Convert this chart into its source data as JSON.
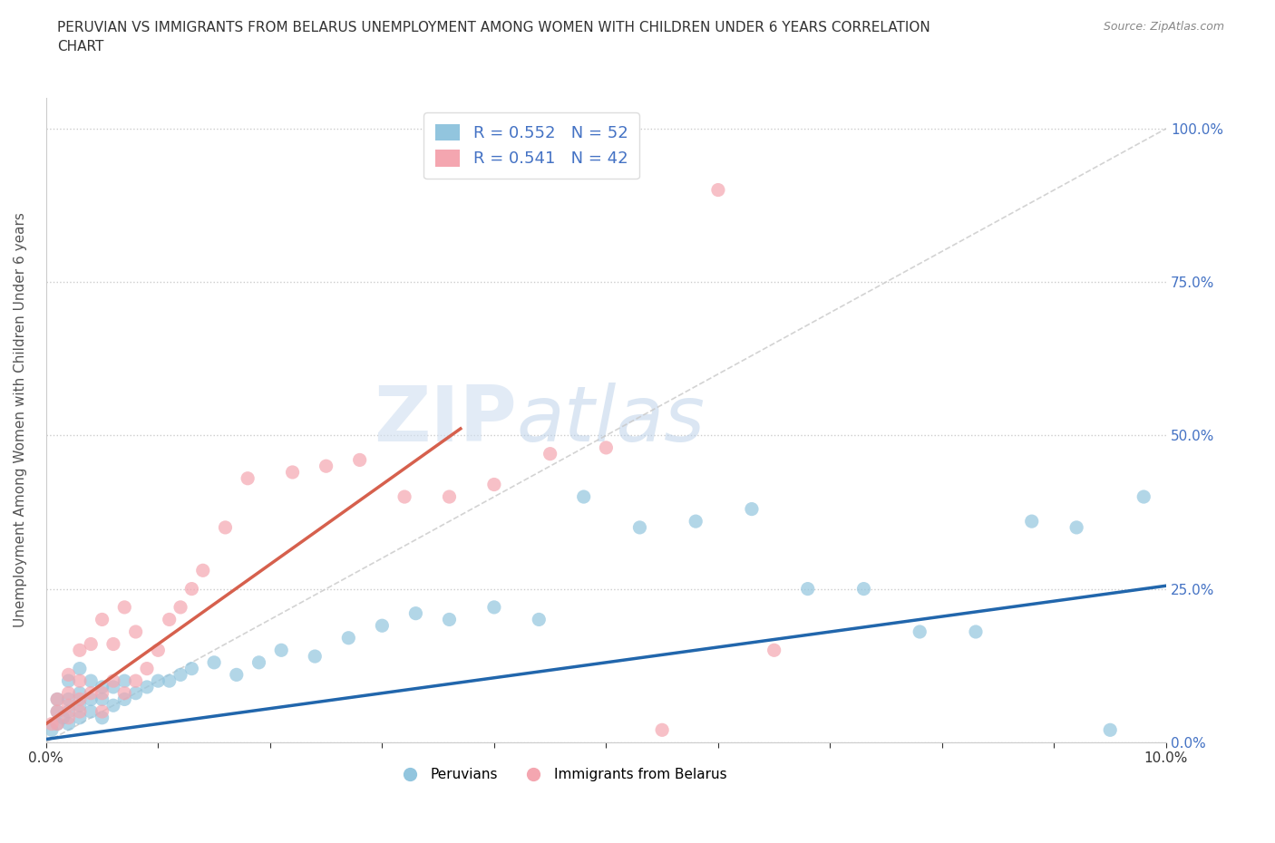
{
  "title": "PERUVIAN VS IMMIGRANTS FROM BELARUS UNEMPLOYMENT AMONG WOMEN WITH CHILDREN UNDER 6 YEARS CORRELATION\nCHART",
  "source": "Source: ZipAtlas.com",
  "ylabel": "Unemployment Among Women with Children Under 6 years",
  "xlim": [
    0,
    0.1
  ],
  "ylim": [
    0,
    1.05
  ],
  "ytick_labels": [
    "0.0%",
    "25.0%",
    "50.0%",
    "75.0%",
    "100.0%"
  ],
  "ytick_vals": [
    0,
    0.25,
    0.5,
    0.75,
    1.0
  ],
  "legend_labels": [
    "Peruvians",
    "Immigrants from Belarus"
  ],
  "blue_color": "#92c5de",
  "pink_color": "#f4a6b0",
  "blue_line_color": "#2166ac",
  "pink_line_color": "#d6604d",
  "R_blue": 0.552,
  "N_blue": 52,
  "R_pink": 0.541,
  "N_pink": 42,
  "blue_x": [
    0.0005,
    0.001,
    0.001,
    0.001,
    0.0015,
    0.002,
    0.002,
    0.002,
    0.002,
    0.003,
    0.003,
    0.003,
    0.003,
    0.004,
    0.004,
    0.004,
    0.005,
    0.005,
    0.005,
    0.006,
    0.006,
    0.007,
    0.007,
    0.008,
    0.009,
    0.01,
    0.011,
    0.012,
    0.013,
    0.015,
    0.017,
    0.019,
    0.021,
    0.024,
    0.027,
    0.03,
    0.033,
    0.036,
    0.04,
    0.044,
    0.048,
    0.053,
    0.058,
    0.063,
    0.068,
    0.073,
    0.078,
    0.083,
    0.088,
    0.092,
    0.095,
    0.098
  ],
  "blue_y": [
    0.02,
    0.03,
    0.05,
    0.07,
    0.04,
    0.03,
    0.05,
    0.07,
    0.1,
    0.04,
    0.06,
    0.08,
    0.12,
    0.05,
    0.07,
    0.1,
    0.04,
    0.07,
    0.09,
    0.06,
    0.09,
    0.07,
    0.1,
    0.08,
    0.09,
    0.1,
    0.1,
    0.11,
    0.12,
    0.13,
    0.11,
    0.13,
    0.15,
    0.14,
    0.17,
    0.19,
    0.21,
    0.2,
    0.22,
    0.2,
    0.4,
    0.35,
    0.36,
    0.38,
    0.25,
    0.25,
    0.18,
    0.18,
    0.36,
    0.35,
    0.02,
    0.4
  ],
  "pink_x": [
    0.0005,
    0.001,
    0.001,
    0.001,
    0.002,
    0.002,
    0.002,
    0.002,
    0.003,
    0.003,
    0.003,
    0.003,
    0.004,
    0.004,
    0.005,
    0.005,
    0.005,
    0.006,
    0.006,
    0.007,
    0.007,
    0.008,
    0.008,
    0.009,
    0.01,
    0.011,
    0.012,
    0.013,
    0.014,
    0.016,
    0.018,
    0.022,
    0.025,
    0.028,
    0.032,
    0.036,
    0.04,
    0.045,
    0.05,
    0.055,
    0.06,
    0.065
  ],
  "pink_y": [
    0.03,
    0.03,
    0.05,
    0.07,
    0.04,
    0.06,
    0.08,
    0.11,
    0.05,
    0.07,
    0.1,
    0.15,
    0.08,
    0.16,
    0.05,
    0.08,
    0.2,
    0.1,
    0.16,
    0.08,
    0.22,
    0.1,
    0.18,
    0.12,
    0.15,
    0.2,
    0.22,
    0.25,
    0.28,
    0.35,
    0.43,
    0.44,
    0.45,
    0.46,
    0.4,
    0.4,
    0.42,
    0.47,
    0.48,
    0.02,
    0.9,
    0.15
  ],
  "watermark_zip": "ZIP",
  "watermark_atlas": "atlas",
  "background_color": "#ffffff",
  "grid_color": "#cccccc"
}
